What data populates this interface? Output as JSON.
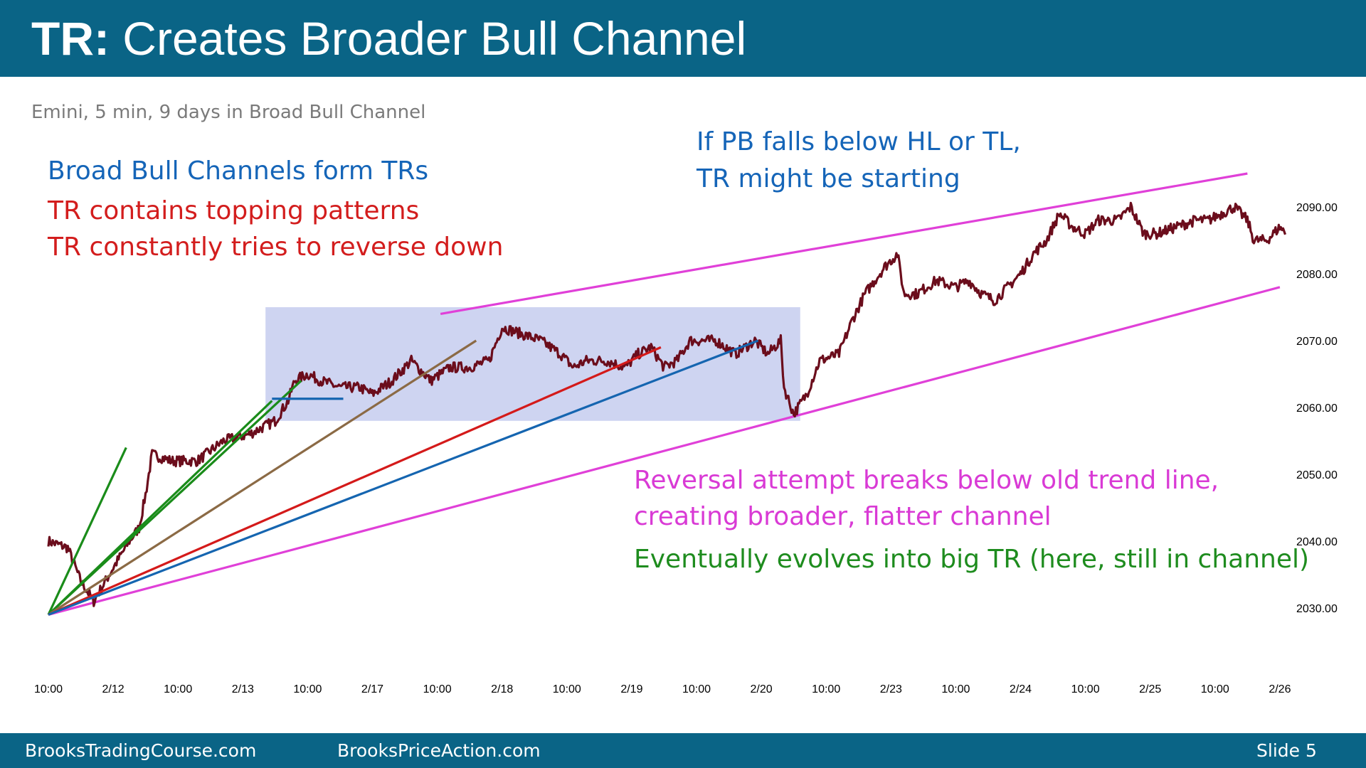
{
  "header": {
    "title_bold": "TR:",
    "title_rest": " Creates Broader Bull Channel"
  },
  "subtitle": "Emini, 5 min, 9 days in Broad Bull Channel",
  "annotations": {
    "broad_channels": "Broad Bull Channels form TRs",
    "topping": "TR contains topping patterns",
    "reverse_down": "TR constantly tries to reverse down",
    "pb_line1": "If PB falls below HL or TL,",
    "pb_line2": "TR might be starting",
    "reversal_line1": "Reversal attempt breaks below old trend line,",
    "reversal_line2": "creating broader, flatter channel",
    "eventually": "Eventually evolves into big TR (here, still in channel)"
  },
  "footer": {
    "left": "BrooksTradingCourse.com",
    "center": "BrooksPriceAction.com",
    "slide": "Slide  5"
  },
  "colors": {
    "header": "#0a6486",
    "candles": "#6b0d1c",
    "channel": "#e040d8",
    "range_box": "#c6cdef",
    "blue_text": "#1565b8",
    "red_text": "#d31d1d",
    "magenta_text": "#d93ad5",
    "green_text": "#1e8c1e"
  },
  "chart_data": {
    "type": "line",
    "title": "",
    "x_tick_labels": [
      "10:00",
      "2/12",
      "10:00",
      "2/13",
      "10:00",
      "2/17",
      "10:00",
      "2/18",
      "10:00",
      "2/19",
      "10:00",
      "2/20",
      "10:00",
      "2/23",
      "10:00",
      "2/24",
      "10:00",
      "2/25",
      "10:00",
      "2/26"
    ],
    "y_tick_labels": [
      "2090.00",
      "2080.00",
      "2070.00",
      "2060.00",
      "2050.00",
      "2040.00",
      "2030.00"
    ],
    "ylim": [
      2023,
      2097
    ],
    "xlim": [
      0,
      19.5
    ],
    "series": [
      {
        "values_xy": [
          [
            0,
            2040
          ],
          [
            0.3,
            2039
          ],
          [
            0.5,
            2034
          ],
          [
            0.7,
            2031
          ],
          [
            1.0,
            2036
          ],
          [
            1.25,
            2040
          ],
          [
            1.4,
            2042
          ],
          [
            1.5,
            2047
          ],
          [
            1.6,
            2053
          ],
          [
            1.9,
            2052
          ],
          [
            2.3,
            2052
          ],
          [
            2.7,
            2055
          ],
          [
            3.1,
            2056
          ],
          [
            3.3,
            2057
          ],
          [
            3.5,
            2058
          ],
          [
            3.7,
            2061
          ],
          [
            3.8,
            2064
          ],
          [
            4.0,
            2065
          ],
          [
            4.2,
            2064
          ],
          [
            4.5,
            2063
          ],
          [
            4.8,
            2063
          ],
          [
            5.0,
            2062
          ],
          [
            5.3,
            2064
          ],
          [
            5.6,
            2067
          ],
          [
            5.9,
            2064
          ],
          [
            6.2,
            2066
          ],
          [
            6.5,
            2066
          ],
          [
            6.8,
            2067
          ],
          [
            7.0,
            2072
          ],
          [
            7.3,
            2071
          ],
          [
            7.6,
            2070
          ],
          [
            7.9,
            2068
          ],
          [
            8.1,
            2066
          ],
          [
            8.3,
            2067
          ],
          [
            8.6,
            2067
          ],
          [
            8.9,
            2066
          ],
          [
            9.1,
            2068
          ],
          [
            9.3,
            2069
          ],
          [
            9.5,
            2066
          ],
          [
            9.7,
            2067
          ],
          [
            9.9,
            2070
          ],
          [
            10.1,
            2070
          ],
          [
            10.3,
            2070
          ],
          [
            10.6,
            2068
          ],
          [
            10.9,
            2070
          ],
          [
            11.1,
            2068
          ],
          [
            11.3,
            2070
          ],
          [
            11.35,
            2063
          ],
          [
            11.5,
            2059
          ],
          [
            11.7,
            2062
          ],
          [
            11.9,
            2067
          ],
          [
            12.2,
            2068
          ],
          [
            12.4,
            2073
          ],
          [
            12.6,
            2077
          ],
          [
            12.9,
            2081
          ],
          [
            13.1,
            2083
          ],
          [
            13.2,
            2077
          ],
          [
            13.4,
            2077
          ],
          [
            13.7,
            2079
          ],
          [
            14.0,
            2078
          ],
          [
            14.2,
            2079
          ],
          [
            14.4,
            2077
          ],
          [
            14.6,
            2076
          ],
          [
            14.8,
            2078
          ],
          [
            15.0,
            2080
          ],
          [
            15.2,
            2083
          ],
          [
            15.4,
            2085
          ],
          [
            15.6,
            2089
          ],
          [
            15.8,
            2087
          ],
          [
            16.0,
            2086
          ],
          [
            16.2,
            2088
          ],
          [
            16.5,
            2088
          ],
          [
            16.7,
            2090
          ],
          [
            16.9,
            2086
          ],
          [
            17.1,
            2086
          ],
          [
            17.4,
            2087
          ],
          [
            17.7,
            2088
          ],
          [
            17.9,
            2088
          ],
          [
            18.1,
            2089
          ],
          [
            18.3,
            2090
          ],
          [
            18.5,
            2088
          ],
          [
            18.6,
            2085
          ],
          [
            18.8,
            2085
          ],
          [
            19.0,
            2087
          ],
          [
            19.1,
            2086
          ]
        ]
      }
    ],
    "trend_lines": [
      {
        "name": "green-1",
        "color": "#1a8c1a",
        "from": [
          0,
          2029
        ],
        "to": [
          1.2,
          2054
        ]
      },
      {
        "name": "green-2",
        "color": "#1a8c1a",
        "from": [
          0,
          2029
        ],
        "to": [
          3.9,
          2064
        ]
      },
      {
        "name": "green-3",
        "color": "#1a8c1a",
        "from": [
          0,
          2029
        ],
        "to": [
          3.45,
          2061
        ]
      },
      {
        "name": "brown",
        "color": "#8b6a45",
        "from": [
          0,
          2029
        ],
        "to": [
          6.6,
          2070
        ]
      },
      {
        "name": "red",
        "color": "#d41a1a",
        "from": [
          0,
          2029
        ],
        "to": [
          9.45,
          2069
        ]
      },
      {
        "name": "blue",
        "color": "#1565b0",
        "from": [
          0,
          2029
        ],
        "to": [
          10.95,
          2070
        ]
      },
      {
        "name": "blue-short",
        "color": "#1565b0",
        "from": [
          3.45,
          2061.3
        ],
        "to": [
          4.55,
          2061.3
        ]
      },
      {
        "name": "channel-upper",
        "color": "#e040d8",
        "from": [
          6.05,
          2074
        ],
        "to": [
          18.5,
          2095
        ]
      },
      {
        "name": "channel-lower",
        "color": "#e040d8",
        "from": [
          0,
          2029
        ],
        "to": [
          19.0,
          2078
        ]
      }
    ],
    "trading_range_box": {
      "x": [
        3.35,
        11.6
      ],
      "y": [
        2058,
        2075
      ]
    }
  }
}
